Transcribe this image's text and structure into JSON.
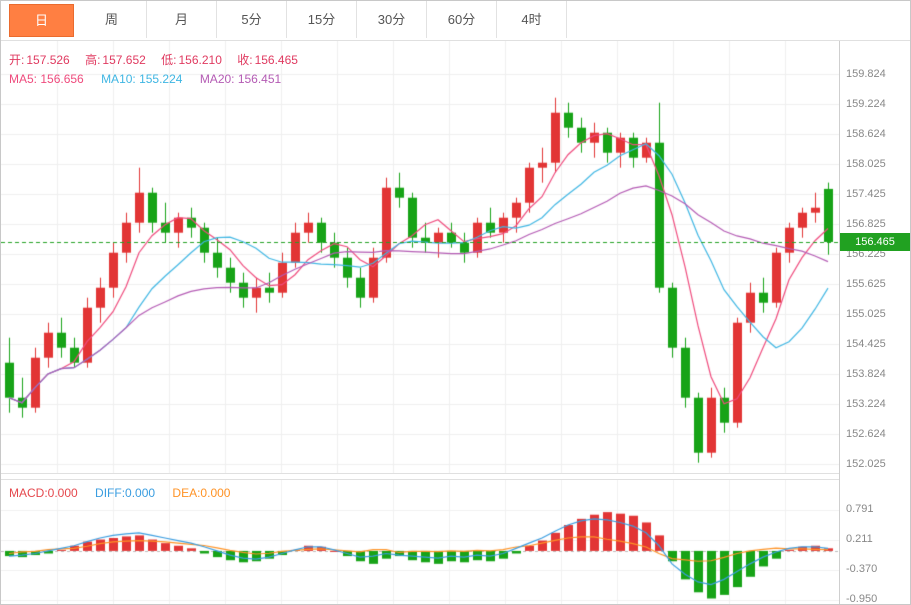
{
  "toolbar": {
    "tabs": [
      {
        "label": "日",
        "active": true
      },
      {
        "label": "周",
        "active": false
      },
      {
        "label": "月",
        "active": false
      },
      {
        "label": "5分",
        "active": false
      },
      {
        "label": "15分",
        "active": false
      },
      {
        "label": "30分",
        "active": false
      },
      {
        "label": "60分",
        "active": false
      },
      {
        "label": "4时",
        "active": false
      }
    ]
  },
  "main_chart": {
    "ohlc": {
      "open_label": "开:",
      "open": "157.526",
      "high_label": "高:",
      "high": "157.652",
      "low_label": "低:",
      "low": "156.210",
      "close_label": "收:",
      "close": "156.465"
    },
    "ma_legend": {
      "ma5": "MA5: 156.656",
      "ma10": "MA10: 155.224",
      "ma20": "MA20: 156.451"
    },
    "y_ticks": [
      "159.824",
      "159.224",
      "158.624",
      "158.025",
      "157.425",
      "156.825",
      "156.225",
      "155.625",
      "155.025",
      "154.425",
      "153.824",
      "153.224",
      "152.624",
      "152.025"
    ],
    "current_price": "156.465"
  },
  "macd_panel": {
    "legend": {
      "macd": "MACD:0.000",
      "diff": "DIFF:0.000",
      "dea": "DEA:0.000"
    },
    "y_ticks": [
      "0.791",
      "0.211",
      "-0.370",
      "-0.950"
    ]
  },
  "colors": {
    "up": "#e23535",
    "down": "#17a317",
    "ma5": "#ef4b7d",
    "ma10": "#3fb6e3",
    "ma20": "#b45bb4",
    "diff": "#3a9de0",
    "dea": "#ff9326",
    "price_line": "#22a122",
    "badge_bg": "#21a121",
    "tab_active_bg": "#ff7f42"
  },
  "chart_data": {
    "type": "candlestick",
    "timeframe": "日",
    "title": "",
    "price_axis_ticks": [
      159.824,
      159.224,
      158.624,
      158.025,
      157.425,
      156.825,
      156.225,
      155.625,
      155.025,
      154.425,
      153.824,
      153.224,
      152.624,
      152.025
    ],
    "current_price": 156.465,
    "ohlc_display": {
      "open": 157.526,
      "high": 157.652,
      "low": 156.21,
      "close": 156.465
    },
    "moving_averages": {
      "ma5": 156.656,
      "ma10": 155.224,
      "ma20": 156.451
    },
    "candles": [
      [
        154.05,
        154.55,
        153.05,
        153.35
      ],
      [
        153.35,
        153.75,
        152.95,
        153.15
      ],
      [
        153.15,
        154.35,
        153.05,
        154.15
      ],
      [
        154.15,
        154.85,
        153.95,
        154.65
      ],
      [
        154.65,
        154.95,
        154.15,
        154.35
      ],
      [
        154.35,
        154.55,
        153.95,
        154.05
      ],
      [
        154.05,
        155.35,
        153.95,
        155.15
      ],
      [
        155.15,
        155.75,
        154.85,
        155.55
      ],
      [
        155.55,
        156.45,
        155.35,
        156.25
      ],
      [
        156.25,
        157.05,
        156.05,
        156.85
      ],
      [
        156.85,
        157.95,
        156.65,
        157.45
      ],
      [
        157.45,
        157.55,
        156.65,
        156.85
      ],
      [
        156.85,
        157.25,
        156.45,
        156.65
      ],
      [
        156.65,
        157.05,
        156.35,
        156.95
      ],
      [
        156.95,
        157.15,
        156.55,
        156.75
      ],
      [
        156.75,
        156.85,
        156.05,
        156.25
      ],
      [
        156.25,
        156.55,
        155.75,
        155.95
      ],
      [
        155.95,
        156.15,
        155.45,
        155.65
      ],
      [
        155.65,
        155.85,
        155.15,
        155.35
      ],
      [
        155.35,
        155.75,
        155.05,
        155.55
      ],
      [
        155.55,
        155.85,
        155.25,
        155.45
      ],
      [
        155.45,
        156.25,
        155.35,
        156.05
      ],
      [
        156.05,
        156.85,
        155.95,
        156.65
      ],
      [
        156.65,
        157.05,
        156.45,
        156.85
      ],
      [
        156.85,
        156.95,
        156.25,
        156.45
      ],
      [
        156.45,
        156.65,
        155.95,
        156.15
      ],
      [
        156.15,
        156.35,
        155.55,
        155.75
      ],
      [
        155.75,
        155.95,
        155.15,
        155.35
      ],
      [
        155.35,
        156.35,
        155.25,
        156.15
      ],
      [
        156.15,
        157.75,
        156.05,
        157.55
      ],
      [
        157.55,
        157.85,
        157.15,
        157.35
      ],
      [
        157.35,
        157.45,
        156.35,
        156.55
      ],
      [
        156.55,
        156.85,
        156.25,
        156.45
      ],
      [
        156.45,
        156.75,
        156.15,
        156.65
      ],
      [
        156.65,
        156.85,
        156.35,
        156.45
      ],
      [
        156.45,
        156.65,
        156.05,
        156.25
      ],
      [
        156.25,
        156.95,
        156.15,
        156.85
      ],
      [
        156.85,
        157.15,
        156.55,
        156.65
      ],
      [
        156.65,
        157.05,
        156.45,
        156.95
      ],
      [
        156.95,
        157.35,
        156.65,
        157.25
      ],
      [
        157.25,
        158.05,
        157.05,
        157.95
      ],
      [
        157.95,
        158.35,
        157.65,
        158.05
      ],
      [
        158.05,
        159.35,
        157.85,
        159.05
      ],
      [
        159.05,
        159.25,
        158.55,
        158.75
      ],
      [
        158.75,
        158.95,
        158.25,
        158.45
      ],
      [
        158.45,
        158.85,
        158.15,
        158.65
      ],
      [
        158.65,
        158.75,
        158.05,
        158.25
      ],
      [
        158.25,
        158.65,
        157.95,
        158.55
      ],
      [
        158.55,
        158.65,
        157.95,
        158.15
      ],
      [
        158.15,
        158.55,
        158.05,
        158.45
      ],
      [
        158.45,
        159.25,
        155.45,
        155.55
      ],
      [
        155.55,
        155.65,
        154.15,
        154.35
      ],
      [
        154.35,
        154.55,
        153.15,
        153.35
      ],
      [
        153.35,
        153.45,
        152.05,
        152.25
      ],
      [
        152.25,
        153.55,
        152.15,
        153.35
      ],
      [
        153.35,
        153.55,
        152.65,
        152.85
      ],
      [
        152.85,
        154.95,
        152.75,
        154.85
      ],
      [
        154.85,
        155.65,
        154.65,
        155.45
      ],
      [
        155.45,
        155.75,
        155.05,
        155.25
      ],
      [
        155.25,
        156.35,
        155.15,
        156.25
      ],
      [
        156.25,
        156.85,
        156.05,
        156.75
      ],
      [
        156.75,
        157.15,
        156.55,
        157.05
      ],
      [
        157.05,
        157.45,
        156.85,
        157.15
      ],
      [
        157.526,
        157.652,
        156.21,
        156.465
      ]
    ],
    "macd": {
      "display": {
        "macd": 0.0,
        "diff": 0.0,
        "dea": 0.0
      },
      "axis_ticks": [
        0.791,
        0.211,
        -0.37,
        -0.95
      ],
      "hist": [
        -0.1,
        -0.12,
        -0.08,
        -0.05,
        0.02,
        0.1,
        0.18,
        0.22,
        0.25,
        0.28,
        0.3,
        0.22,
        0.15,
        0.1,
        0.05,
        -0.05,
        -0.12,
        -0.18,
        -0.22,
        -0.2,
        -0.15,
        -0.08,
        0.02,
        0.1,
        0.08,
        0.0,
        -0.1,
        -0.2,
        -0.25,
        -0.15,
        -0.1,
        -0.18,
        -0.22,
        -0.25,
        -0.2,
        -0.22,
        -0.18,
        -0.2,
        -0.15,
        -0.05,
        0.1,
        0.2,
        0.35,
        0.5,
        0.62,
        0.7,
        0.75,
        0.72,
        0.68,
        0.55,
        0.3,
        -0.2,
        -0.55,
        -0.8,
        -0.92,
        -0.85,
        -0.7,
        -0.5,
        -0.3,
        -0.15,
        0.02,
        0.08,
        0.1,
        0.05
      ],
      "diff": [
        -0.1,
        -0.08,
        -0.05,
        0.0,
        0.05,
        0.1,
        0.18,
        0.25,
        0.3,
        0.33,
        0.35,
        0.3,
        0.25,
        0.2,
        0.15,
        0.08,
        0.0,
        -0.08,
        -0.14,
        -0.16,
        -0.12,
        -0.05,
        0.02,
        0.08,
        0.08,
        0.02,
        -0.05,
        -0.12,
        -0.1,
        -0.05,
        -0.08,
        -0.1,
        -0.12,
        -0.14,
        -0.1,
        -0.12,
        -0.08,
        -0.1,
        -0.05,
        0.05,
        0.15,
        0.25,
        0.38,
        0.5,
        0.58,
        0.62,
        0.6,
        0.55,
        0.48,
        0.35,
        0.1,
        -0.25,
        -0.45,
        -0.6,
        -0.65,
        -0.55,
        -0.4,
        -0.25,
        -0.12,
        -0.02,
        0.05,
        0.08,
        0.08,
        0.05
      ]
    }
  }
}
